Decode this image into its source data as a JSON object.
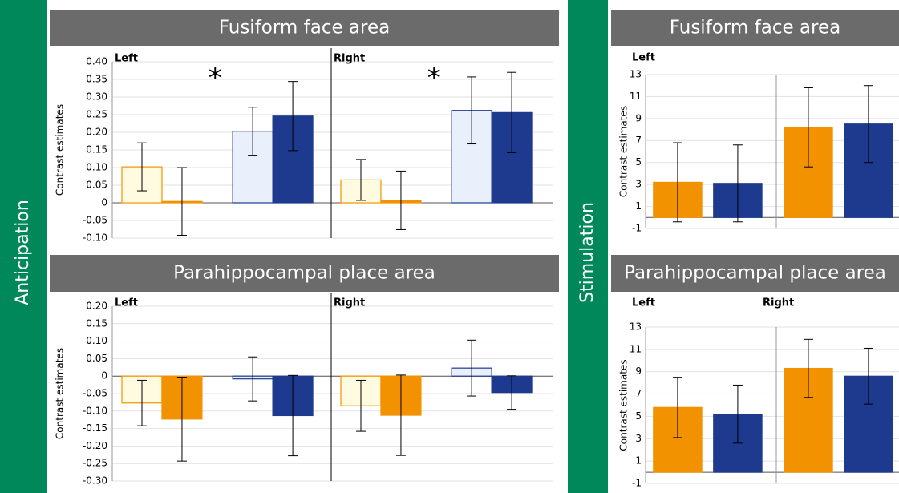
{
  "sections": [
    "Anticipation",
    "Stimulation"
  ],
  "chart_data": [
    {
      "type": "bar",
      "title": "Fusiform face area",
      "ylabel": "Contrast estimates",
      "ylim": [
        -0.1,
        0.4
      ],
      "yticks": [
        {
          "value": -0.1,
          "label": "-0.10"
        },
        {
          "value": -0.05,
          "label": "-0.05"
        },
        0,
        {
          "value": 0.05,
          "label": "0.05"
        },
        {
          "value": 0.1,
          "label": "0.10"
        },
        {
          "value": 0.15,
          "label": "0.15"
        },
        {
          "value": 0.2,
          "label": "0.20"
        },
        {
          "value": 0.25,
          "label": "0.25"
        },
        {
          "value": 0.3,
          "label": "0.30"
        },
        {
          "value": 0.35,
          "label": "0.35"
        },
        {
          "value": 0.4,
          "label": "0.40"
        }
      ],
      "fills": [
        "#fffbe0",
        "#f39200",
        "#eaf0fb",
        "#1d3a8f"
      ],
      "strokes": [
        "#f39200",
        "#f39200",
        "#1d3a8f",
        "#1d3a8f"
      ],
      "grid": true,
      "panels": [
        {
          "label": "Left",
          "annotation": "*",
          "values": [
            0.102,
            0.004,
            0.203,
            0.246
          ],
          "errors": [
            0.068,
            0.096,
            0.068,
            0.098
          ]
        },
        {
          "label": "Right",
          "annotation": "*",
          "values": [
            0.065,
            0.007,
            0.262,
            0.256
          ],
          "errors": [
            0.058,
            0.083,
            0.095,
            0.114
          ]
        }
      ]
    },
    {
      "type": "bar",
      "title": "Parahippocampal place area",
      "ylabel": "Contrast estimates",
      "ylim": [
        -0.3,
        0.2
      ],
      "yticks": [
        {
          "value": -0.3,
          "label": "-0.30"
        },
        {
          "value": -0.25,
          "label": "-0.25"
        },
        {
          "value": -0.2,
          "label": "-0.20"
        },
        {
          "value": -0.15,
          "label": "-0.15"
        },
        {
          "value": -0.1,
          "label": "-0.10"
        },
        {
          "value": -0.05,
          "label": "-0.05"
        },
        0,
        {
          "value": 0.05,
          "label": "0.05"
        },
        {
          "value": 0.1,
          "label": "0.10"
        },
        {
          "value": 0.15,
          "label": "0.15"
        },
        {
          "value": 0.2,
          "label": "0.20"
        }
      ],
      "fills": [
        "#fffbe0",
        "#f39200",
        "#eaf0fb",
        "#1d3a8f"
      ],
      "strokes": [
        "#f39200",
        "#f39200",
        "#1d3a8f",
        "#1d3a8f"
      ],
      "grid": true,
      "panels": [
        {
          "label": "Left",
          "values": [
            -0.077,
            -0.123,
            -0.008,
            -0.113
          ],
          "errors": [
            0.065,
            0.12,
            0.063,
            0.115
          ]
        },
        {
          "label": "Right",
          "values": [
            -0.085,
            -0.112,
            0.023,
            -0.047
          ],
          "errors": [
            0.073,
            0.115,
            0.08,
            0.048
          ]
        }
      ]
    },
    {
      "type": "bar",
      "title": "Fusiform face area",
      "ylabel": "Contrast estimates",
      "ylim": [
        -1,
        13
      ],
      "yticks": [
        -1,
        1,
        3,
        5,
        7,
        9,
        11,
        13
      ],
      "fills": [
        "#f39200",
        "#1d3a8f"
      ],
      "strokes": [
        "#f39200",
        "#1d3a8f"
      ],
      "grid": true,
      "panels": [
        {
          "label": "Left",
          "values": [
            3.2,
            3.1
          ],
          "errors": [
            3.6,
            3.5
          ]
        },
        {
          "values": [
            8.2,
            8.5
          ],
          "errors": [
            3.6,
            3.5
          ]
        }
      ]
    },
    {
      "type": "bar",
      "title": "Parahippocampal place area",
      "ylabel": "Contrast estimates",
      "ylim": [
        -1,
        13
      ],
      "yticks": [
        -1,
        1,
        3,
        5,
        7,
        9,
        11,
        13
      ],
      "fills": [
        "#f39200",
        "#1d3a8f"
      ],
      "strokes": [
        "#f39200",
        "#1d3a8f"
      ],
      "grid": true,
      "panels": [
        {
          "label": "Left",
          "values": [
            5.8,
            5.2
          ],
          "errors": [
            2.7,
            2.6
          ]
        },
        {
          "label": "Right",
          "values": [
            9.3,
            8.6
          ],
          "errors": [
            2.6,
            2.5
          ]
        }
      ]
    }
  ]
}
